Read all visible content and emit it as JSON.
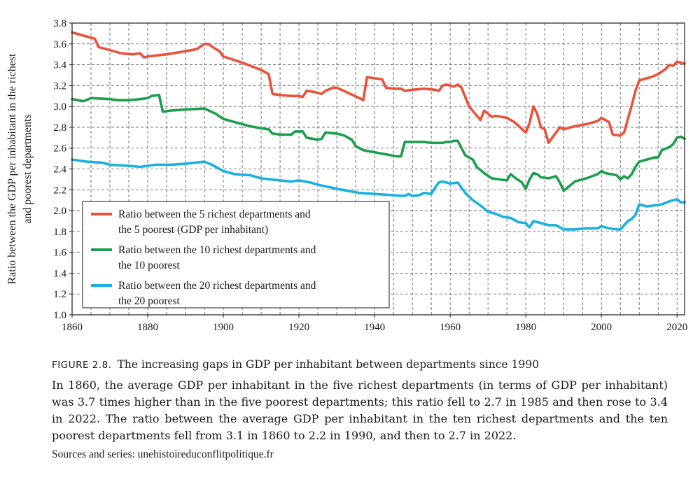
{
  "chart_data": {
    "type": "line",
    "xlabel": "",
    "ylabel_lines": [
      "Ratio between the GDP per inhabitant in the richest",
      "and poorest departments"
    ],
    "xlim": [
      1860,
      2022
    ],
    "ylim": [
      1.0,
      3.8
    ],
    "x_ticks": [
      "1860",
      "1880",
      "1900",
      "1920",
      "1940",
      "1960",
      "1980",
      "2000",
      "2020"
    ],
    "y_ticks": [
      "1.0",
      "1.2",
      "1.4",
      "1.6",
      "1.8",
      "2.0",
      "2.2",
      "2.4",
      "2.6",
      "2.8",
      "3.0",
      "3.2",
      "3.4",
      "3.6",
      "3.8"
    ],
    "grid": "dashed",
    "legend_position": "lower-left",
    "series": [
      {
        "name": "Ratio between the 5 richest departments and the 5 poorest (GDP per inhabitant)",
        "legend_lines": [
          "Ratio between the 5 richest departments and",
          "the 5 poorest (GDP per inhabitant)"
        ],
        "color": "#e8533a",
        "points": [
          [
            1860,
            3.71
          ],
          [
            1863,
            3.68
          ],
          [
            1866,
            3.65
          ],
          [
            1867,
            3.57
          ],
          [
            1870,
            3.54
          ],
          [
            1873,
            3.51
          ],
          [
            1876,
            3.5
          ],
          [
            1878,
            3.51
          ],
          [
            1879,
            3.47
          ],
          [
            1880,
            3.48
          ],
          [
            1885,
            3.5
          ],
          [
            1890,
            3.53
          ],
          [
            1893,
            3.55
          ],
          [
            1895,
            3.6
          ],
          [
            1896,
            3.6
          ],
          [
            1898,
            3.55
          ],
          [
            1899,
            3.53
          ],
          [
            1900,
            3.48
          ],
          [
            1905,
            3.42
          ],
          [
            1910,
            3.35
          ],
          [
            1912,
            3.31
          ],
          [
            1913,
            3.12
          ],
          [
            1915,
            3.11
          ],
          [
            1918,
            3.1
          ],
          [
            1920,
            3.1
          ],
          [
            1921,
            3.09
          ],
          [
            1922,
            3.15
          ],
          [
            1924,
            3.14
          ],
          [
            1926,
            3.12
          ],
          [
            1927,
            3.15
          ],
          [
            1929,
            3.18
          ],
          [
            1930,
            3.18
          ],
          [
            1933,
            3.13
          ],
          [
            1936,
            3.08
          ],
          [
            1937,
            3.06
          ],
          [
            1938,
            3.28
          ],
          [
            1940,
            3.27
          ],
          [
            1942,
            3.26
          ],
          [
            1943,
            3.18
          ],
          [
            1945,
            3.17
          ],
          [
            1947,
            3.17
          ],
          [
            1948,
            3.15
          ],
          [
            1950,
            3.16
          ],
          [
            1953,
            3.17
          ],
          [
            1956,
            3.16
          ],
          [
            1957,
            3.15
          ],
          [
            1958,
            3.2
          ],
          [
            1959,
            3.21
          ],
          [
            1961,
            3.19
          ],
          [
            1962,
            3.21
          ],
          [
            1963,
            3.18
          ],
          [
            1965,
            3.0
          ],
          [
            1968,
            2.87
          ],
          [
            1969,
            2.96
          ],
          [
            1971,
            2.9
          ],
          [
            1972,
            2.91
          ],
          [
            1975,
            2.89
          ],
          [
            1977,
            2.85
          ],
          [
            1980,
            2.75
          ],
          [
            1981,
            2.84
          ],
          [
            1982,
            3.0
          ],
          [
            1983,
            2.93
          ],
          [
            1984,
            2.8
          ],
          [
            1985,
            2.78
          ],
          [
            1986,
            2.65
          ],
          [
            1987,
            2.7
          ],
          [
            1988,
            2.75
          ],
          [
            1989,
            2.8
          ],
          [
            1990,
            2.78
          ],
          [
            1993,
            2.81
          ],
          [
            1996,
            2.83
          ],
          [
            1999,
            2.86
          ],
          [
            2000,
            2.89
          ],
          [
            2001,
            2.87
          ],
          [
            2002,
            2.85
          ],
          [
            2003,
            2.73
          ],
          [
            2005,
            2.72
          ],
          [
            2006,
            2.75
          ],
          [
            2008,
            3.01
          ],
          [
            2009,
            3.15
          ],
          [
            2010,
            3.25
          ],
          [
            2013,
            3.28
          ],
          [
            2015,
            3.31
          ],
          [
            2017,
            3.36
          ],
          [
            2018,
            3.4
          ],
          [
            2019,
            3.39
          ],
          [
            2020,
            3.43
          ],
          [
            2021,
            3.42
          ],
          [
            2022,
            3.41
          ]
        ]
      },
      {
        "name": "Ratio between the 10 richest departments and the 10 poorest",
        "legend_lines": [
          "Ratio between the 10 richest departments and",
          "the 10 poorest"
        ],
        "color": "#1c9e4c",
        "points": [
          [
            1860,
            3.07
          ],
          [
            1863,
            3.05
          ],
          [
            1865,
            3.08
          ],
          [
            1870,
            3.07
          ],
          [
            1872,
            3.06
          ],
          [
            1875,
            3.06
          ],
          [
            1878,
            3.07
          ],
          [
            1880,
            3.08
          ],
          [
            1881,
            3.1
          ],
          [
            1883,
            3.11
          ],
          [
            1884,
            2.95
          ],
          [
            1886,
            2.96
          ],
          [
            1890,
            2.97
          ],
          [
            1895,
            2.98
          ],
          [
            1898,
            2.93
          ],
          [
            1900,
            2.88
          ],
          [
            1903,
            2.85
          ],
          [
            1907,
            2.81
          ],
          [
            1910,
            2.79
          ],
          [
            1912,
            2.78
          ],
          [
            1913,
            2.74
          ],
          [
            1915,
            2.73
          ],
          [
            1918,
            2.73
          ],
          [
            1919,
            2.76
          ],
          [
            1921,
            2.76
          ],
          [
            1922,
            2.7
          ],
          [
            1925,
            2.68
          ],
          [
            1926,
            2.69
          ],
          [
            1927,
            2.75
          ],
          [
            1930,
            2.74
          ],
          [
            1932,
            2.72
          ],
          [
            1934,
            2.68
          ],
          [
            1935,
            2.62
          ],
          [
            1937,
            2.58
          ],
          [
            1940,
            2.56
          ],
          [
            1943,
            2.54
          ],
          [
            1946,
            2.52
          ],
          [
            1947,
            2.52
          ],
          [
            1948,
            2.66
          ],
          [
            1950,
            2.66
          ],
          [
            1953,
            2.66
          ],
          [
            1955,
            2.65
          ],
          [
            1958,
            2.65
          ],
          [
            1959,
            2.66
          ],
          [
            1960,
            2.66
          ],
          [
            1961,
            2.67
          ],
          [
            1962,
            2.67
          ],
          [
            1963,
            2.6
          ],
          [
            1964,
            2.53
          ],
          [
            1966,
            2.49
          ],
          [
            1967,
            2.42
          ],
          [
            1969,
            2.36
          ],
          [
            1971,
            2.31
          ],
          [
            1973,
            2.3
          ],
          [
            1975,
            2.29
          ],
          [
            1976,
            2.35
          ],
          [
            1977,
            2.32
          ],
          [
            1979,
            2.27
          ],
          [
            1980,
            2.21
          ],
          [
            1981,
            2.3
          ],
          [
            1982,
            2.36
          ],
          [
            1983,
            2.35
          ],
          [
            1984,
            2.32
          ],
          [
            1986,
            2.31
          ],
          [
            1988,
            2.33
          ],
          [
            1989,
            2.27
          ],
          [
            1990,
            2.19
          ],
          [
            1991,
            2.22
          ],
          [
            1992,
            2.25
          ],
          [
            1993,
            2.28
          ],
          [
            1996,
            2.31
          ],
          [
            1999,
            2.35
          ],
          [
            2000,
            2.38
          ],
          [
            2001,
            2.36
          ],
          [
            2004,
            2.34
          ],
          [
            2005,
            2.3
          ],
          [
            2006,
            2.33
          ],
          [
            2007,
            2.31
          ],
          [
            2008,
            2.35
          ],
          [
            2009,
            2.42
          ],
          [
            2010,
            2.47
          ],
          [
            2012,
            2.49
          ],
          [
            2014,
            2.51
          ],
          [
            2015,
            2.51
          ],
          [
            2016,
            2.58
          ],
          [
            2018,
            2.61
          ],
          [
            2019,
            2.64
          ],
          [
            2020,
            2.7
          ],
          [
            2021,
            2.71
          ],
          [
            2022,
            2.69
          ]
        ]
      },
      {
        "name": "Ratio between the 20 richest departments and the 20 poorest",
        "legend_lines": [
          "Ratio between the 20 richest departments and",
          "the 20 poorest"
        ],
        "color": "#1ab0e0",
        "points": [
          [
            1860,
            2.49
          ],
          [
            1864,
            2.47
          ],
          [
            1868,
            2.46
          ],
          [
            1870,
            2.44
          ],
          [
            1875,
            2.43
          ],
          [
            1878,
            2.42
          ],
          [
            1882,
            2.44
          ],
          [
            1886,
            2.44
          ],
          [
            1890,
            2.45
          ],
          [
            1895,
            2.47
          ],
          [
            1897,
            2.44
          ],
          [
            1900,
            2.38
          ],
          [
            1903,
            2.35
          ],
          [
            1907,
            2.34
          ],
          [
            1910,
            2.31
          ],
          [
            1915,
            2.29
          ],
          [
            1918,
            2.28
          ],
          [
            1920,
            2.29
          ],
          [
            1923,
            2.27
          ],
          [
            1926,
            2.24
          ],
          [
            1930,
            2.21
          ],
          [
            1933,
            2.19
          ],
          [
            1936,
            2.17
          ],
          [
            1940,
            2.16
          ],
          [
            1944,
            2.15
          ],
          [
            1948,
            2.14
          ],
          [
            1949,
            2.16
          ],
          [
            1950,
            2.14
          ],
          [
            1952,
            2.15
          ],
          [
            1953,
            2.17
          ],
          [
            1955,
            2.16
          ],
          [
            1956,
            2.22
          ],
          [
            1957,
            2.27
          ],
          [
            1958,
            2.28
          ],
          [
            1960,
            2.26
          ],
          [
            1962,
            2.27
          ],
          [
            1964,
            2.17
          ],
          [
            1966,
            2.1
          ],
          [
            1968,
            2.05
          ],
          [
            1970,
            1.99
          ],
          [
            1972,
            1.97
          ],
          [
            1974,
            1.94
          ],
          [
            1976,
            1.93
          ],
          [
            1978,
            1.89
          ],
          [
            1980,
            1.88
          ],
          [
            1981,
            1.84
          ],
          [
            1982,
            1.9
          ],
          [
            1984,
            1.88
          ],
          [
            1986,
            1.86
          ],
          [
            1988,
            1.86
          ],
          [
            1990,
            1.82
          ],
          [
            1993,
            1.82
          ],
          [
            1996,
            1.83
          ],
          [
            1999,
            1.83
          ],
          [
            2000,
            1.85
          ],
          [
            2002,
            1.83
          ],
          [
            2004,
            1.82
          ],
          [
            2005,
            1.82
          ],
          [
            2007,
            1.9
          ],
          [
            2008,
            1.92
          ],
          [
            2009,
            1.96
          ],
          [
            2010,
            2.06
          ],
          [
            2012,
            2.04
          ],
          [
            2014,
            2.05
          ],
          [
            2016,
            2.06
          ],
          [
            2018,
            2.09
          ],
          [
            2019,
            2.1
          ],
          [
            2020,
            2.11
          ],
          [
            2021,
            2.08
          ],
          [
            2022,
            2.08
          ]
        ]
      }
    ]
  },
  "caption": {
    "figure_label": "FIGURE 2.8.",
    "title": "The increasing gaps in GDP per inhabitant between departments since 1990",
    "description": "In 1860, the average GDP per inhabitant in the five richest departments (in terms of GDP per inhabitant) was 3.7 times higher than in the five poorest departments; this ratio fell to 2.7 in 1985 and then rose to 3.4 in 2022. The ratio between the average GDP per inhabitant in the ten richest departments and the ten poorest departments fell from 3.1 in 1860 to 2.2 in 1990, and then to 2.7 in 2022.",
    "sources": "Sources and series: unehistoireduconflitpolitique.fr"
  }
}
